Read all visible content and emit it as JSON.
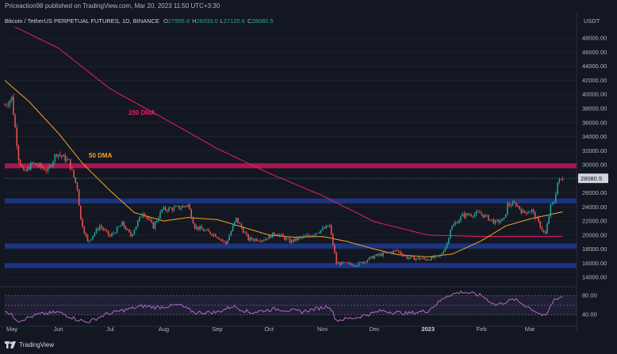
{
  "header": {
    "publisher": "Priceaction98 published on TradingView.com, Mar 20, 2023 11:50 UTC+3:30",
    "symbol": "Bitcoin / TetherUS PERPETUAL FUTURES, 1D, BINANCE",
    "ohlc": [
      {
        "label": "O",
        "value": "27955.8"
      },
      {
        "label": "H",
        "value": "28333.0"
      },
      {
        "label": "L",
        "value": "27120.6"
      },
      {
        "label": "C",
        "value": "28080.5"
      }
    ]
  },
  "currency": "USDT",
  "footer": {
    "logo_text": "TradingView"
  },
  "colors": {
    "background": "#131722",
    "up": "#26a69a",
    "down": "#ef5350",
    "dma200": "#e91e63",
    "dma50": "#f5a623",
    "rsi": "#b467c6",
    "support_zone": "#1f3a93",
    "resistance_zone": "#c2185b"
  },
  "chart_data": {
    "type": "candlestick",
    "price_axis": {
      "ticks": [
        48000,
        46000,
        44000,
        42000,
        40000,
        38000,
        36000,
        34000,
        32000,
        30000,
        28000,
        26000,
        24000,
        22000,
        20000,
        18000,
        16000,
        14000
      ],
      "range": [
        13000,
        49600
      ],
      "last_price": 28080.5
    },
    "x_axis": {
      "labels": [
        "May",
        "Jun",
        "Jul",
        "Aug",
        "Sep",
        "Oct",
        "Nov",
        "Dec",
        "2023",
        "Feb",
        "Mar"
      ],
      "range": [
        "2022-05-01",
        "2023-03-28"
      ]
    },
    "annotations": [
      {
        "text": "200 DMA",
        "color": "#e91e63"
      },
      {
        "text": "50 DMA",
        "color": "#f5a623"
      }
    ],
    "zones": [
      {
        "type": "resistance",
        "low": 29500,
        "high": 30200
      },
      {
        "type": "support",
        "low": 24500,
        "high": 25200
      },
      {
        "type": "support",
        "low": 18100,
        "high": 18800
      },
      {
        "type": "support",
        "low": 15300,
        "high": 16000
      }
    ],
    "price_anchors": [
      [
        "2022-05-01",
        38500
      ],
      [
        "2022-05-05",
        39500
      ],
      [
        "2022-05-09",
        31000
      ],
      [
        "2022-05-12",
        28800
      ],
      [
        "2022-05-17",
        30200
      ],
      [
        "2022-05-26",
        29200
      ],
      [
        "2022-05-31",
        31700
      ],
      [
        "2022-06-07",
        30500
      ],
      [
        "2022-06-12",
        26700
      ],
      [
        "2022-06-14",
        22200
      ],
      [
        "2022-06-18",
        19000
      ],
      [
        "2022-06-25",
        21300
      ],
      [
        "2022-07-01",
        19800
      ],
      [
        "2022-07-08",
        21600
      ],
      [
        "2022-07-13",
        19900
      ],
      [
        "2022-07-20",
        23300
      ],
      [
        "2022-07-26",
        21200
      ],
      [
        "2022-07-31",
        23600
      ],
      [
        "2022-08-10",
        23900
      ],
      [
        "2022-08-15",
        24300
      ],
      [
        "2022-08-19",
        21200
      ],
      [
        "2022-08-31",
        20000
      ],
      [
        "2022-09-06",
        18800
      ],
      [
        "2022-09-12",
        22300
      ],
      [
        "2022-09-19",
        19400
      ],
      [
        "2022-09-28",
        19400
      ],
      [
        "2022-10-05",
        20300
      ],
      [
        "2022-10-13",
        19100
      ],
      [
        "2022-10-25",
        20000
      ],
      [
        "2022-11-05",
        21300
      ],
      [
        "2022-11-09",
        16000
      ],
      [
        "2022-11-21",
        15800
      ],
      [
        "2022-12-01",
        17000
      ],
      [
        "2022-12-14",
        17800
      ],
      [
        "2022-12-20",
        16800
      ],
      [
        "2022-12-31",
        16550
      ],
      [
        "2023-01-08",
        17000
      ],
      [
        "2023-01-12",
        18800
      ],
      [
        "2023-01-14",
        20900
      ],
      [
        "2023-01-21",
        22800
      ],
      [
        "2023-01-31",
        23100
      ],
      [
        "2023-02-09",
        21800
      ],
      [
        "2023-02-14",
        22200
      ],
      [
        "2023-02-16",
        24300
      ],
      [
        "2023-02-21",
        24400
      ],
      [
        "2023-02-25",
        23200
      ],
      [
        "2023-03-02",
        23500
      ],
      [
        "2023-03-09",
        20400
      ],
      [
        "2023-03-10",
        20100
      ],
      [
        "2023-03-13",
        24100
      ],
      [
        "2023-03-15",
        24700
      ],
      [
        "2023-03-17",
        27500
      ],
      [
        "2023-03-20",
        28080
      ]
    ],
    "dma200_anchors": [
      [
        "2022-05-01",
        50300
      ],
      [
        "2022-06-01",
        46600
      ],
      [
        "2022-07-01",
        40800
      ],
      [
        "2022-08-01",
        36600
      ],
      [
        "2022-09-01",
        32300
      ],
      [
        "2022-10-01",
        28800
      ],
      [
        "2022-11-01",
        25600
      ],
      [
        "2022-12-01",
        21900
      ],
      [
        "2023-01-01",
        20000
      ],
      [
        "2023-02-01",
        19800
      ],
      [
        "2023-03-20",
        19800
      ]
    ],
    "dma50_anchors": [
      [
        "2022-05-01",
        42000
      ],
      [
        "2022-05-15",
        39000
      ],
      [
        "2022-06-01",
        34500
      ],
      [
        "2022-06-15",
        30200
      ],
      [
        "2022-07-01",
        26300
      ],
      [
        "2022-07-15",
        23200
      ],
      [
        "2022-08-01",
        22000
      ],
      [
        "2022-08-15",
        22500
      ],
      [
        "2022-09-01",
        22200
      ],
      [
        "2022-09-15",
        21200
      ],
      [
        "2022-10-01",
        20000
      ],
      [
        "2022-10-15",
        19700
      ],
      [
        "2022-11-01",
        19800
      ],
      [
        "2022-11-15",
        19100
      ],
      [
        "2022-12-01",
        18000
      ],
      [
        "2022-12-15",
        17200
      ],
      [
        "2023-01-01",
        16900
      ],
      [
        "2023-01-15",
        17300
      ],
      [
        "2023-02-01",
        19200
      ],
      [
        "2023-02-15",
        21300
      ],
      [
        "2023-03-01",
        22300
      ],
      [
        "2023-03-20",
        23300
      ]
    ],
    "rsi_panel": {
      "ticks": [
        80,
        40
      ],
      "range": [
        22,
        92
      ],
      "anchors": [
        [
          "2022-05-01",
          50
        ],
        [
          "2022-05-09",
          27
        ],
        [
          "2022-05-20",
          40
        ],
        [
          "2022-06-01",
          45
        ],
        [
          "2022-06-12",
          30
        ],
        [
          "2022-06-18",
          23
        ],
        [
          "2022-06-28",
          40
        ],
        [
          "2022-07-10",
          50
        ],
        [
          "2022-07-20",
          58
        ],
        [
          "2022-07-28",
          55
        ],
        [
          "2022-08-10",
          60
        ],
        [
          "2022-08-19",
          44
        ],
        [
          "2022-09-01",
          45
        ],
        [
          "2022-09-10",
          58
        ],
        [
          "2022-09-20",
          44
        ],
        [
          "2022-10-05",
          52
        ],
        [
          "2022-10-20",
          46
        ],
        [
          "2022-11-05",
          58
        ],
        [
          "2022-11-09",
          28
        ],
        [
          "2022-11-21",
          34
        ],
        [
          "2022-12-05",
          48
        ],
        [
          "2022-12-20",
          42
        ],
        [
          "2023-01-01",
          48
        ],
        [
          "2023-01-12",
          80
        ],
        [
          "2023-01-21",
          88
        ],
        [
          "2023-02-01",
          80
        ],
        [
          "2023-02-09",
          60
        ],
        [
          "2023-02-20",
          72
        ],
        [
          "2023-02-28",
          56
        ],
        [
          "2023-03-10",
          35
        ],
        [
          "2023-03-15",
          72
        ],
        [
          "2023-03-20",
          78
        ]
      ]
    }
  }
}
